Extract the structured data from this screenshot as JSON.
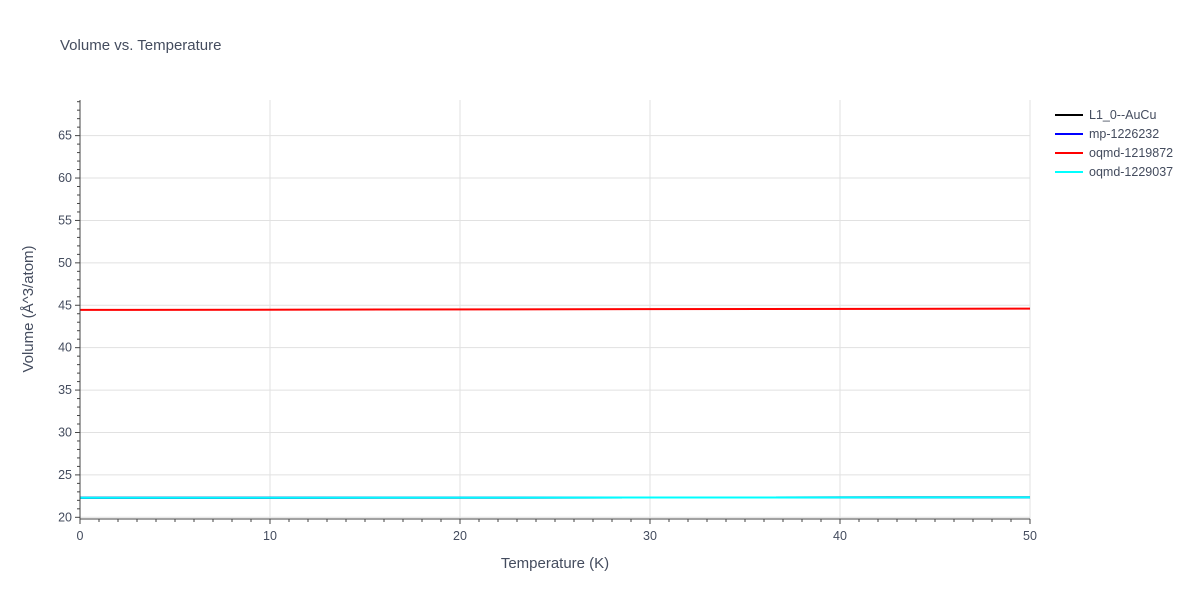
{
  "chart_data": {
    "type": "line",
    "title": "Volume vs. Temperature",
    "xlabel": "Temperature (K)",
    "ylabel": "Volume (Å^3/atom)",
    "xlim": [
      0,
      50
    ],
    "ylim": [
      19.8,
      69.2
    ],
    "xticks": [
      0,
      10,
      20,
      30,
      40,
      50
    ],
    "yticks": [
      20,
      25,
      30,
      35,
      40,
      45,
      50,
      55,
      60,
      65
    ],
    "grid": true,
    "legend_position": "right",
    "series": [
      {
        "name": "L1_0--AuCu",
        "color": "#000000",
        "x": [
          0,
          50
        ],
        "y": [
          22.3,
          22.35
        ]
      },
      {
        "name": "mp-1226232",
        "color": "#0000ff",
        "x": [
          0,
          50
        ],
        "y": [
          22.3,
          22.35
        ]
      },
      {
        "name": "oqmd-1219872",
        "color": "#ff0000",
        "x": [
          0,
          50
        ],
        "y": [
          44.45,
          44.6
        ]
      },
      {
        "name": "oqmd-1229037",
        "color": "#00ffff",
        "x": [
          0,
          50
        ],
        "y": [
          22.3,
          22.35
        ]
      }
    ]
  }
}
